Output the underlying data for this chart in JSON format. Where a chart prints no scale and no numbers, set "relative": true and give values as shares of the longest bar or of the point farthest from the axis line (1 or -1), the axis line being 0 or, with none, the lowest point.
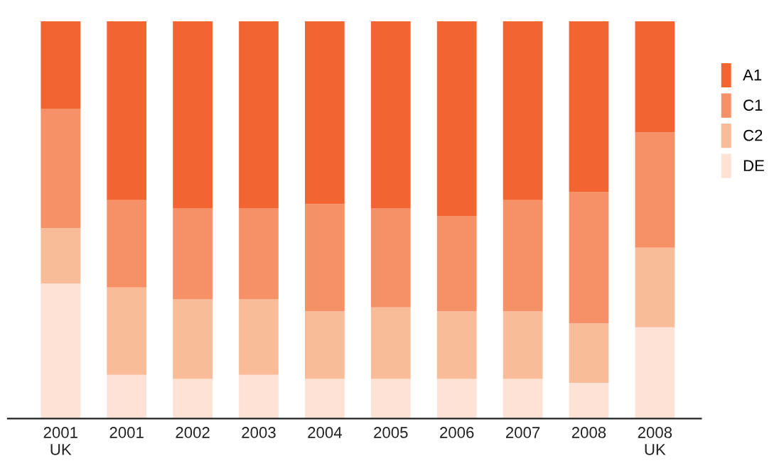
{
  "chart_data": {
    "type": "bar",
    "stacked": true,
    "relative": true,
    "legend": "right",
    "grid": false,
    "categories": [
      "2001\nUK",
      "2001",
      "2002",
      "2003",
      "2004",
      "2005",
      "2006",
      "2007",
      "2008",
      "2008\nUK"
    ],
    "series": [
      {
        "name": "DE",
        "color": "#fde2d5",
        "values": [
          0.34,
          0.11,
          0.1,
          0.11,
          0.1,
          0.1,
          0.1,
          0.1,
          0.09,
          0.23
        ]
      },
      {
        "name": "C2",
        "color": "#f8bc98",
        "values": [
          0.14,
          0.22,
          0.2,
          0.19,
          0.17,
          0.18,
          0.17,
          0.17,
          0.15,
          0.2
        ]
      },
      {
        "name": "C1",
        "color": "#f69066",
        "values": [
          0.3,
          0.22,
          0.23,
          0.23,
          0.27,
          0.25,
          0.24,
          0.28,
          0.33,
          0.29
        ]
      },
      {
        "name": "A1",
        "color": "#f26532",
        "values": [
          0.22,
          0.45,
          0.47,
          0.47,
          0.46,
          0.47,
          0.49,
          0.45,
          0.43,
          0.28
        ]
      }
    ]
  }
}
